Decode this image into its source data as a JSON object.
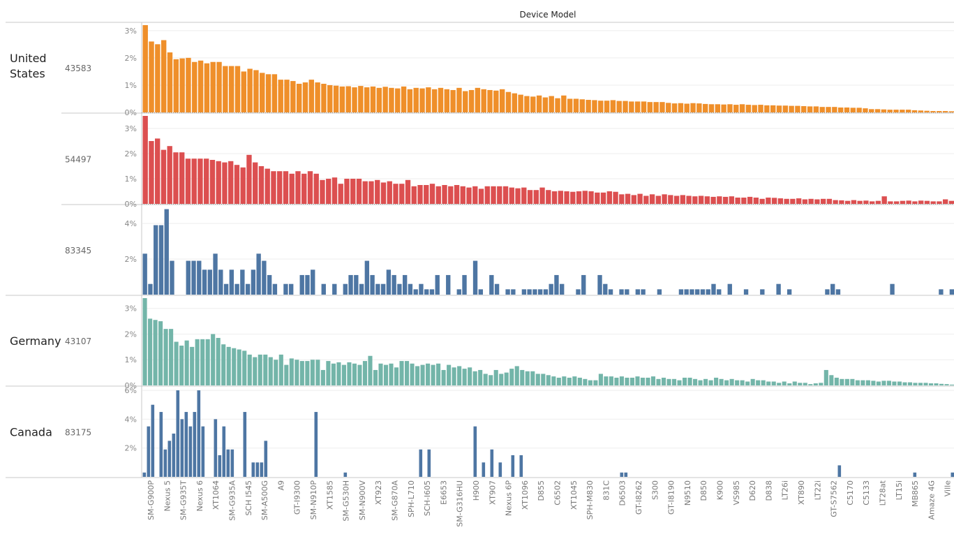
{
  "header": {
    "column_title": "Device Model"
  },
  "colors": {
    "orange": "#ef8f2a",
    "red": "#dc4f50",
    "blue": "#4e76a3",
    "teal": "#73b5a9",
    "grid": "#eeeeee",
    "divider": "#c8c8c8",
    "axis_text": "#888888",
    "text": "#222222"
  },
  "chart_data": {
    "type": "bar",
    "x_tick_labels": [
      "SM-G900P",
      "Nexus 5",
      "SM-G935T",
      "Nexus 6",
      "XT1064",
      "SM-G935A",
      "SCH I545",
      "SM-A500G",
      "A9",
      "GT-I9300",
      "SM-N910P",
      "XT1585",
      "SM-G530H",
      "SM-N900V",
      "XT923",
      "SM-G870A",
      "SPH-L710",
      "SCH-I605",
      "E6653",
      "SM-G316HU",
      "H900",
      "XT907",
      "Nexus 6P",
      "XT1096",
      "D855",
      "C6502",
      "XT1045",
      "SPH-M830",
      "831C",
      "D6503",
      "GT-I8262",
      "S300",
      "GT-I8190",
      "N9510",
      "D850",
      "K900",
      "VS985",
      "D620",
      "D838",
      "LT26i",
      "XT890",
      "LT22i",
      "GT-S7562",
      "C5170",
      "C5133",
      "LT28at",
      "LT15i",
      "MB865",
      "Amaze 4G",
      "Ville"
    ],
    "x_axis_title": "Device Model",
    "panels": [
      {
        "country": "United States",
        "count": "43583",
        "color": "orange",
        "y_ticks": [
          "3%",
          "2%",
          "1%",
          "0%"
        ],
        "y_tick_values": [
          3,
          2,
          1,
          0
        ],
        "ylim": [
          0,
          3.2
        ],
        "values": [
          3.2,
          2.6,
          2.5,
          2.65,
          2.2,
          1.95,
          1.98,
          2.0,
          1.85,
          1.9,
          1.8,
          1.85,
          1.85,
          1.7,
          1.7,
          1.7,
          1.5,
          1.6,
          1.55,
          1.45,
          1.4,
          1.4,
          1.2,
          1.2,
          1.15,
          1.05,
          1.1,
          1.2,
          1.1,
          1.05,
          1.0,
          0.98,
          0.95,
          0.96,
          0.92,
          0.97,
          0.92,
          0.95,
          0.9,
          0.94,
          0.9,
          0.88,
          0.95,
          0.85,
          0.9,
          0.88,
          0.92,
          0.85,
          0.9,
          0.85,
          0.82,
          0.9,
          0.78,
          0.82,
          0.9,
          0.85,
          0.82,
          0.8,
          0.85,
          0.75,
          0.7,
          0.65,
          0.6,
          0.58,
          0.62,
          0.55,
          0.6,
          0.52,
          0.62,
          0.5,
          0.5,
          0.48,
          0.46,
          0.45,
          0.43,
          0.43,
          0.45,
          0.42,
          0.42,
          0.4,
          0.4,
          0.4,
          0.38,
          0.38,
          0.38,
          0.35,
          0.33,
          0.34,
          0.32,
          0.34,
          0.33,
          0.31,
          0.3,
          0.3,
          0.29,
          0.3,
          0.28,
          0.3,
          0.28,
          0.27,
          0.28,
          0.26,
          0.26,
          0.25,
          0.25,
          0.24,
          0.24,
          0.23,
          0.22,
          0.22,
          0.2,
          0.2,
          0.2,
          0.18,
          0.18,
          0.17,
          0.17,
          0.15,
          0.12,
          0.12,
          0.11,
          0.1,
          0.1,
          0.1,
          0.1,
          0.08,
          0.07,
          0.06,
          0.05,
          0.05,
          0.05,
          0.04
        ]
      },
      {
        "country": "",
        "count": "54497",
        "color": "red",
        "y_ticks": [
          "3%",
          "2%",
          "1%",
          "0%"
        ],
        "y_tick_values": [
          3,
          2,
          1,
          0
        ],
        "ylim": [
          0,
          3.5
        ],
        "values": [
          3.5,
          2.5,
          2.6,
          2.15,
          2.3,
          2.05,
          2.05,
          1.8,
          1.8,
          1.8,
          1.8,
          1.75,
          1.7,
          1.65,
          1.7,
          1.55,
          1.45,
          1.95,
          1.65,
          1.5,
          1.4,
          1.3,
          1.3,
          1.3,
          1.2,
          1.3,
          1.2,
          1.3,
          1.2,
          0.95,
          1.0,
          1.05,
          0.8,
          1.0,
          1.0,
          1.0,
          0.9,
          0.9,
          0.95,
          0.85,
          0.9,
          0.8,
          0.8,
          0.95,
          0.7,
          0.75,
          0.75,
          0.8,
          0.7,
          0.75,
          0.7,
          0.75,
          0.7,
          0.65,
          0.7,
          0.6,
          0.7,
          0.7,
          0.7,
          0.7,
          0.65,
          0.62,
          0.65,
          0.55,
          0.55,
          0.65,
          0.55,
          0.5,
          0.52,
          0.5,
          0.48,
          0.5,
          0.52,
          0.5,
          0.45,
          0.45,
          0.5,
          0.48,
          0.38,
          0.4,
          0.35,
          0.4,
          0.32,
          0.38,
          0.32,
          0.38,
          0.35,
          0.32,
          0.35,
          0.32,
          0.3,
          0.32,
          0.3,
          0.28,
          0.3,
          0.28,
          0.3,
          0.25,
          0.25,
          0.28,
          0.25,
          0.2,
          0.25,
          0.24,
          0.22,
          0.2,
          0.2,
          0.22,
          0.18,
          0.2,
          0.18,
          0.2,
          0.2,
          0.15,
          0.14,
          0.12,
          0.15,
          0.12,
          0.13,
          0.1,
          0.12,
          0.3,
          0.1,
          0.1,
          0.12,
          0.13,
          0.1,
          0.13,
          0.12,
          0.1,
          0.1,
          0.18,
          0.12
        ]
      },
      {
        "country": "",
        "count": "83345",
        "color": "blue",
        "y_ticks": [
          "4%",
          "2%"
        ],
        "y_tick_values": [
          4,
          2
        ],
        "ylim": [
          0,
          4.9
        ],
        "values": [
          2.3,
          0.6,
          3.9,
          3.9,
          4.8,
          1.9,
          0,
          0,
          1.9,
          1.9,
          1.9,
          1.4,
          1.4,
          2.3,
          1.4,
          0.6,
          1.4,
          0.6,
          1.4,
          0.6,
          1.4,
          2.3,
          1.9,
          1.1,
          0.6,
          0,
          0.6,
          0.6,
          0,
          1.1,
          1.1,
          1.4,
          0,
          0.6,
          0,
          0.6,
          0,
          0.6,
          1.1,
          1.1,
          0.6,
          1.9,
          1.1,
          0.6,
          0.6,
          1.4,
          1.1,
          0.6,
          1.1,
          0.6,
          0.3,
          0.6,
          0.3,
          0.3,
          1.1,
          0,
          1.1,
          0,
          0.3,
          1.1,
          0,
          1.9,
          0.3,
          0,
          1.1,
          0.6,
          0,
          0.3,
          0.3,
          0,
          0.3,
          0.3,
          0.3,
          0.3,
          0.3,
          0.6,
          1.1,
          0.6,
          0,
          0,
          0.3,
          1.1,
          0,
          0,
          1.1,
          0.6,
          0.3,
          0,
          0.3,
          0.3,
          0,
          0.3,
          0.3,
          0,
          0,
          0.3,
          0,
          0,
          0,
          0.3,
          0.3,
          0.3,
          0.3,
          0.3,
          0.3,
          0.6,
          0.3,
          0,
          0.6,
          0,
          0,
          0.3,
          0,
          0,
          0.3,
          0,
          0,
          0.6,
          0,
          0.3,
          0,
          0,
          0,
          0,
          0,
          0,
          0.3,
          0.6,
          0.3,
          0,
          0,
          0,
          0,
          0,
          0,
          0,
          0,
          0,
          0.6,
          0,
          0,
          0,
          0,
          0,
          0,
          0,
          0,
          0.3,
          0,
          0.3
        ]
      },
      {
        "country": "Germany",
        "count": "43107",
        "color": "teal",
        "y_ticks": [
          "3%",
          "2%",
          "1%",
          "0%"
        ],
        "y_tick_values": [
          3,
          2,
          1,
          0
        ],
        "ylim": [
          0,
          3.4
        ],
        "values": [
          3.4,
          2.6,
          2.55,
          2.5,
          2.2,
          2.2,
          1.7,
          1.55,
          1.75,
          1.5,
          1.8,
          1.8,
          1.8,
          2.0,
          1.85,
          1.6,
          1.5,
          1.45,
          1.4,
          1.35,
          1.2,
          1.1,
          1.2,
          1.2,
          1.1,
          1.0,
          1.2,
          0.8,
          1.05,
          1.0,
          0.95,
          0.95,
          1.0,
          1.0,
          0.6,
          0.95,
          0.85,
          0.9,
          0.8,
          0.9,
          0.85,
          0.8,
          0.95,
          1.15,
          0.6,
          0.85,
          0.8,
          0.85,
          0.7,
          0.95,
          0.95,
          0.85,
          0.75,
          0.8,
          0.85,
          0.8,
          0.85,
          0.6,
          0.8,
          0.7,
          0.75,
          0.65,
          0.7,
          0.55,
          0.6,
          0.45,
          0.4,
          0.6,
          0.45,
          0.5,
          0.65,
          0.75,
          0.6,
          0.55,
          0.55,
          0.45,
          0.45,
          0.4,
          0.35,
          0.3,
          0.35,
          0.3,
          0.35,
          0.3,
          0.25,
          0.2,
          0.2,
          0.45,
          0.35,
          0.35,
          0.3,
          0.35,
          0.3,
          0.3,
          0.35,
          0.3,
          0.3,
          0.35,
          0.25,
          0.3,
          0.25,
          0.25,
          0.2,
          0.3,
          0.3,
          0.25,
          0.2,
          0.25,
          0.2,
          0.3,
          0.25,
          0.2,
          0.25,
          0.2,
          0.2,
          0.15,
          0.25,
          0.2,
          0.2,
          0.15,
          0.15,
          0.1,
          0.15,
          0.08,
          0.15,
          0.1,
          0.1,
          0.05,
          0.08,
          0.1,
          0.6,
          0.4,
          0.3,
          0.25,
          0.25,
          0.25,
          0.2,
          0.2,
          0.2,
          0.18,
          0.15,
          0.18,
          0.18,
          0.15,
          0.15,
          0.12,
          0.12,
          0.1,
          0.1,
          0.1,
          0.08,
          0.08,
          0.06,
          0.05,
          0.03
        ]
      },
      {
        "country": "Canada",
        "count": "83175",
        "color": "blue",
        "y_ticks": [
          "6%",
          "4%",
          "2%"
        ],
        "y_tick_values": [
          6,
          4,
          2
        ],
        "ylim": [
          0,
          6.1
        ],
        "values": [
          0.3,
          3.5,
          5.0,
          0,
          4.5,
          1.9,
          2.5,
          3.0,
          6.0,
          4.0,
          4.5,
          3.5,
          4.5,
          6.0,
          3.5,
          0,
          0,
          4.0,
          1.5,
          3.5,
          1.9,
          1.9,
          0,
          0,
          4.5,
          0,
          1.0,
          1.0,
          1.0,
          2.5,
          0,
          0,
          0,
          0,
          0,
          0,
          0,
          0,
          0,
          0,
          0,
          4.5,
          0,
          0,
          0,
          0,
          0,
          0,
          0.3,
          0,
          0,
          0,
          0,
          0,
          0,
          0,
          0,
          0,
          0,
          0,
          0,
          0,
          0,
          0,
          0,
          0,
          1.9,
          0,
          1.9,
          0,
          0,
          0,
          0,
          0,
          0,
          0,
          0,
          0,
          0,
          3.5,
          0,
          1.0,
          0,
          1.9,
          0,
          1.0,
          0,
          0,
          1.5,
          0,
          1.5,
          0,
          0,
          0,
          0,
          0,
          0,
          0,
          0,
          0,
          0,
          0,
          0,
          0,
          0,
          0,
          0,
          0,
          0,
          0,
          0,
          0,
          0,
          0,
          0.3,
          0.3,
          0,
          0,
          0,
          0,
          0,
          0,
          0,
          0,
          0,
          0,
          0,
          0,
          0,
          0,
          0,
          0,
          0,
          0,
          0,
          0,
          0,
          0,
          0,
          0,
          0,
          0,
          0,
          0,
          0,
          0,
          0,
          0,
          0,
          0,
          0,
          0,
          0,
          0,
          0,
          0,
          0,
          0,
          0,
          0,
          0,
          0,
          0,
          0,
          0,
          0,
          0.8,
          0,
          0,
          0,
          0,
          0,
          0,
          0,
          0,
          0,
          0,
          0,
          0,
          0,
          0,
          0,
          0,
          0,
          0.3,
          0,
          0,
          0,
          0,
          0,
          0,
          0,
          0,
          0.3
        ]
      }
    ],
    "grid": true,
    "legend": "none"
  }
}
